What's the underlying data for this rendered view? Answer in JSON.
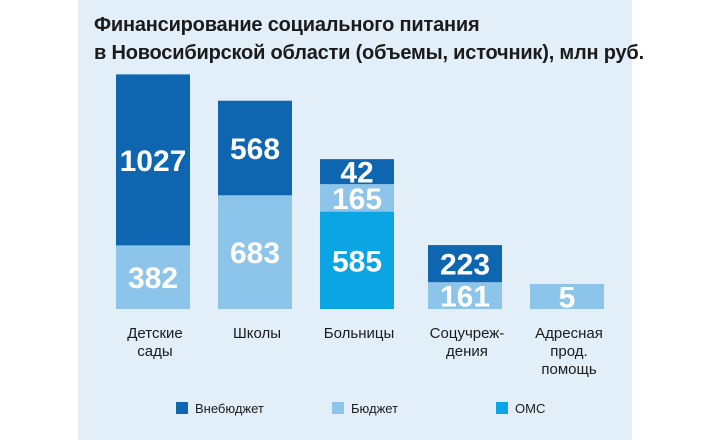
{
  "chart_data": {
    "type": "bar",
    "stacked": true,
    "title_lines": [
      "Финансирование социального питания",
      "в Новосибирской области (объемы, источник), млн руб."
    ],
    "categories": [
      [
        "Детские",
        "сады"
      ],
      [
        "Школы"
      ],
      [
        "Больницы"
      ],
      [
        "Соцучреж-",
        "дения"
      ],
      [
        "Адресная",
        "прод.",
        "помощь"
      ]
    ],
    "series": [
      {
        "name": "ОМС",
        "color": "#0aa5e2",
        "values": [
          0,
          0,
          585,
          0,
          0
        ]
      },
      {
        "name": "Бюджет",
        "color": "#8cc4ea",
        "values": [
          382,
          683,
          165,
          161,
          5
        ]
      },
      {
        "name": "Внебюджет",
        "color": "#0e65b0",
        "values": [
          1027,
          568,
          42,
          223,
          0
        ]
      }
    ],
    "legend": [
      {
        "name": "Внебюджет",
        "color": "#0e65b0"
      },
      {
        "name": "Бюджет",
        "color": "#8cc4ea"
      },
      {
        "name": "ОМС",
        "color": "#0aa5e2"
      }
    ],
    "legend_position": "bottom"
  }
}
